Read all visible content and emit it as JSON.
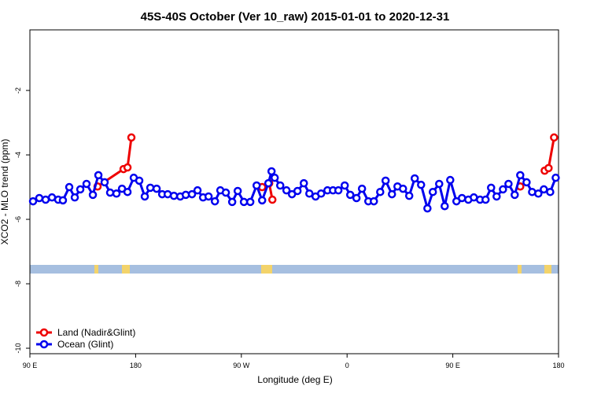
{
  "chart_data": {
    "type": "line",
    "title": "45S-40S October (Ver 10_raw)   2015-01-01 to 2020-12-31",
    "xlabel": "Longitude (deg E)",
    "ylabel": "XCO2 - MLO trend (ppm)",
    "xlim": [
      90,
      540
    ],
    "ylim": [
      -10.17,
      -0.12
    ],
    "xticks": [
      {
        "value": 90,
        "label": "90 E"
      },
      {
        "value": 180,
        "label": "180"
      },
      {
        "value": 270,
        "label": "90 W"
      },
      {
        "value": 360,
        "label": "0"
      },
      {
        "value": 450,
        "label": "90 E"
      },
      {
        "value": 540,
        "label": "180"
      }
    ],
    "yticks": [
      -2,
      -4,
      -6,
      -8,
      -10
    ],
    "legend": "bottom-left",
    "series": [
      {
        "name": "Land (Nadir&Glint)",
        "color": "#ee0000",
        "x": [
          147.6,
          169.7,
          173.1,
          176.4,
          null,
          287.7,
          293.7,
          296.4,
          null,
          507.4,
          null,
          528.2,
          531.5,
          536.2
        ],
        "values": [
          -4.98,
          -4.44,
          -4.39,
          -3.46,
          null,
          -5.0,
          -4.88,
          -5.39,
          null,
          -4.98,
          null,
          -4.49,
          -4.41,
          -3.46
        ]
      },
      {
        "name": "Ocean (Glint)",
        "color": "#0000ee",
        "x": [
          92.7,
          98.0,
          103.4,
          108.8,
          114.1,
          118.1,
          123.5,
          128.2,
          132.9,
          138.2,
          143.6,
          148.3,
          153.6,
          158.3,
          163.7,
          168.4,
          173.1,
          178.4,
          183.1,
          187.8,
          192.5,
          197.9,
          202.6,
          207.3,
          212.6,
          218.0,
          222.7,
          228.0,
          232.7,
          237.4,
          242.1,
          247.5,
          252.1,
          256.8,
          262.2,
          266.9,
          272.2,
          277.6,
          283.0,
          287.7,
          293.0,
          295.7,
          298.4,
          303.1,
          308.4,
          313.1,
          317.8,
          323.2,
          327.9,
          333.2,
          337.9,
          343.3,
          348.0,
          352.6,
          358.0,
          362.7,
          368.0,
          372.7,
          378.1,
          382.8,
          388.2,
          392.8,
          398.2,
          402.9,
          407.6,
          412.9,
          417.6,
          423.0,
          428.4,
          433.0,
          438.4,
          443.1,
          447.8,
          453.1,
          457.8,
          463.2,
          467.9,
          473.2,
          477.9,
          482.6,
          487.3,
          492.7,
          497.4,
          502.7,
          507.4,
          512.8,
          517.5,
          522.8,
          527.5,
          532.9,
          537.6
        ],
        "values": [
          -5.44,
          -5.34,
          -5.39,
          -5.32,
          -5.39,
          -5.41,
          -5.0,
          -5.32,
          -5.07,
          -4.9,
          -5.24,
          -4.63,
          -4.85,
          -5.17,
          -5.2,
          -5.05,
          -5.15,
          -4.71,
          -4.8,
          -5.29,
          -5.02,
          -5.05,
          -5.22,
          -5.22,
          -5.27,
          -5.29,
          -5.24,
          -5.22,
          -5.1,
          -5.32,
          -5.29,
          -5.44,
          -5.1,
          -5.17,
          -5.46,
          -5.12,
          -5.46,
          -5.46,
          -4.95,
          -5.41,
          -4.88,
          -4.51,
          -4.71,
          -4.95,
          -5.1,
          -5.22,
          -5.12,
          -4.88,
          -5.2,
          -5.29,
          -5.2,
          -5.1,
          -5.1,
          -5.1,
          -4.95,
          -5.24,
          -5.34,
          -5.05,
          -5.44,
          -5.44,
          -5.15,
          -4.8,
          -5.22,
          -4.98,
          -5.05,
          -5.27,
          -4.73,
          -4.93,
          -5.66,
          -5.15,
          -4.9,
          -5.59,
          -4.78,
          -5.44,
          -5.34,
          -5.39,
          -5.32,
          -5.39,
          -5.39,
          -5.02,
          -5.29,
          -5.07,
          -4.9,
          -5.24,
          -4.63,
          -4.85,
          -5.15,
          -5.2,
          -5.07,
          -5.15,
          -4.71
        ]
      }
    ]
  }
}
